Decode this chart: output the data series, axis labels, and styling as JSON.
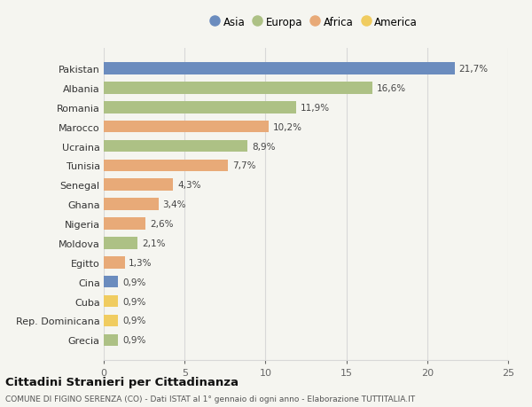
{
  "countries": [
    "Pakistan",
    "Albania",
    "Romania",
    "Marocco",
    "Ucraina",
    "Tunisia",
    "Senegal",
    "Ghana",
    "Nigeria",
    "Moldova",
    "Egitto",
    "Cina",
    "Cuba",
    "Rep. Dominicana",
    "Grecia"
  ],
  "values": [
    21.7,
    16.6,
    11.9,
    10.2,
    8.9,
    7.7,
    4.3,
    3.4,
    2.6,
    2.1,
    1.3,
    0.9,
    0.9,
    0.9,
    0.9
  ],
  "labels": [
    "21,7%",
    "16,6%",
    "11,9%",
    "10,2%",
    "8,9%",
    "7,7%",
    "4,3%",
    "3,4%",
    "2,6%",
    "2,1%",
    "1,3%",
    "0,9%",
    "0,9%",
    "0,9%",
    "0,9%"
  ],
  "continents": [
    "Asia",
    "Europa",
    "Europa",
    "Africa",
    "Europa",
    "Africa",
    "Africa",
    "Africa",
    "Africa",
    "Europa",
    "Africa",
    "Asia",
    "America",
    "America",
    "Europa"
  ],
  "continent_colors": {
    "Asia": "#6b8cbe",
    "Europa": "#adc185",
    "Africa": "#e8aa78",
    "America": "#f0cc60"
  },
  "legend_order": [
    "Asia",
    "Europa",
    "Africa",
    "America"
  ],
  "title": "Cittadini Stranieri per Cittadinanza",
  "subtitle": "COMUNE DI FIGINO SERENZA (CO) - Dati ISTAT al 1° gennaio di ogni anno - Elaborazione TUTTITALIA.IT",
  "xlim": [
    0,
    25
  ],
  "xticks": [
    0,
    5,
    10,
    15,
    20,
    25
  ],
  "background_color": "#f5f5f0",
  "grid_color": "#d8d8d8"
}
